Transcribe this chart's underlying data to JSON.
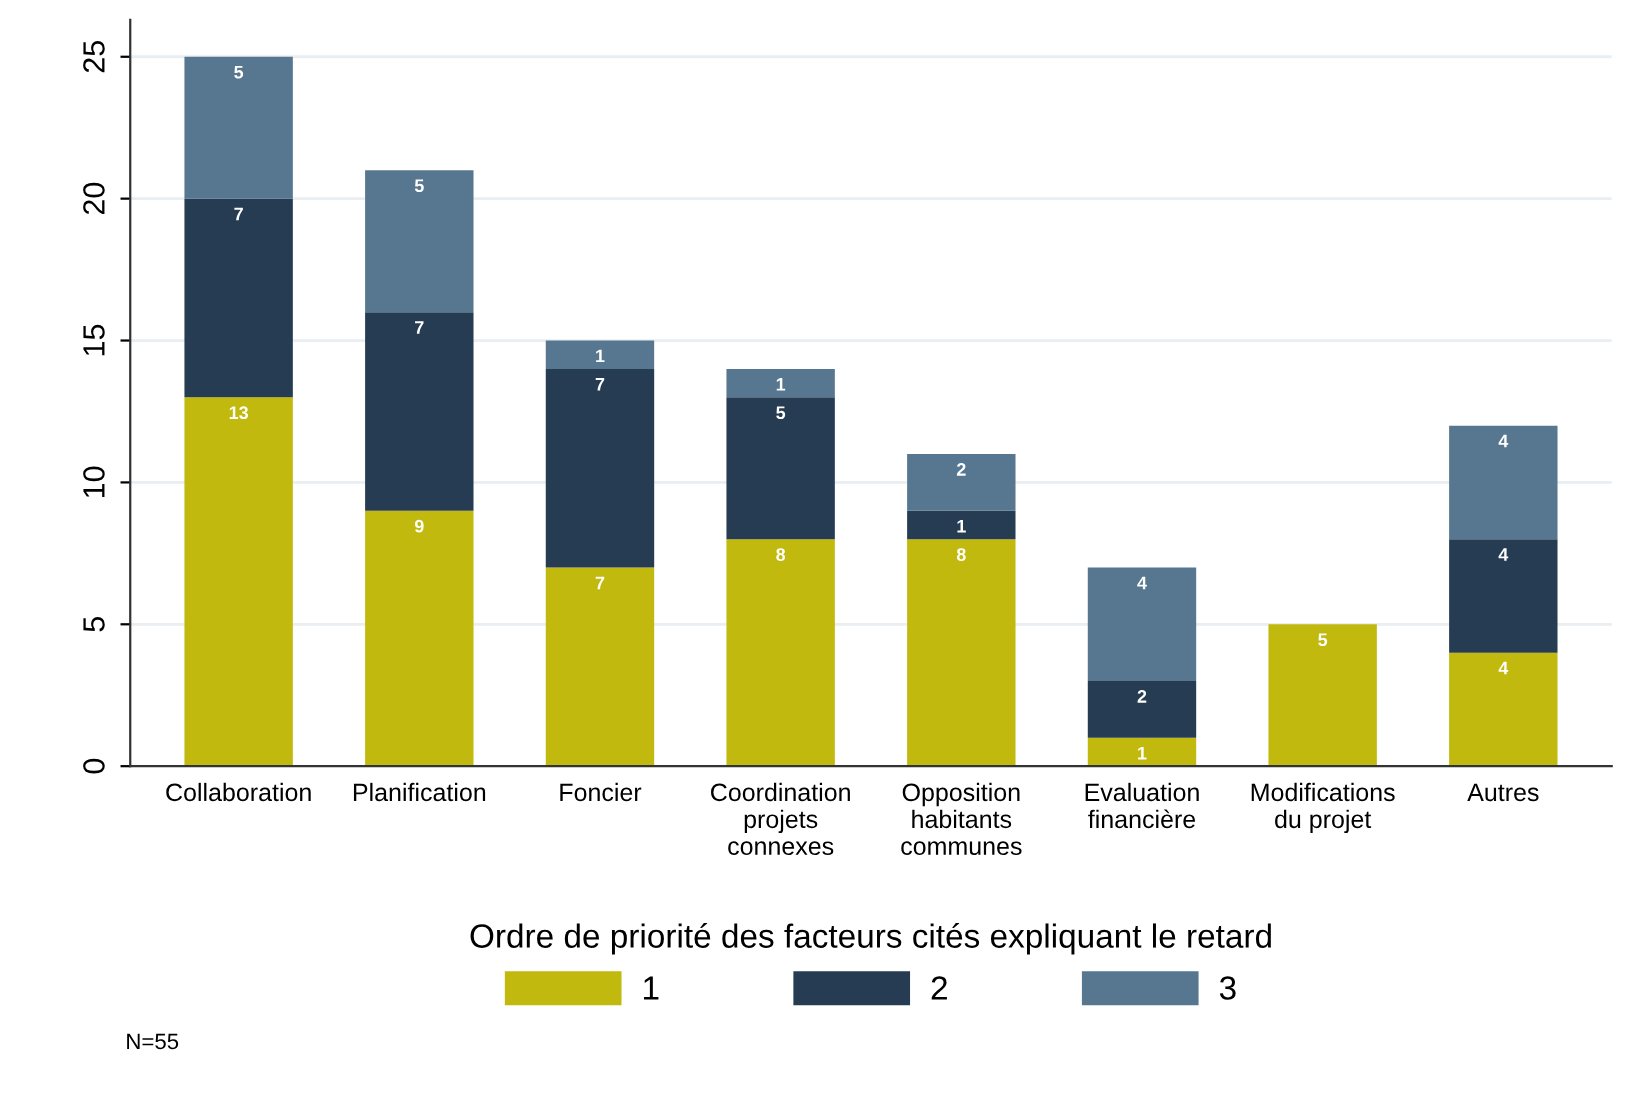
{
  "chart_data": {
    "type": "bar",
    "stacked": true,
    "categories": [
      "Collaboration",
      "Planification",
      "Foncier",
      "Coordination\nprojets\nconnexes",
      "Opposition\nhabitants\ncommunes",
      "Evaluation\nfinancière",
      "Modifications\ndu projet",
      "Autres"
    ],
    "series": [
      {
        "name": "1",
        "color": "#c1b90d",
        "values": [
          13,
          9,
          7,
          8,
          8,
          1,
          5,
          4
        ]
      },
      {
        "name": "2",
        "color": "#263c52",
        "values": [
          7,
          7,
          7,
          5,
          1,
          2,
          null,
          4
        ]
      },
      {
        "name": "3",
        "color": "#56778f",
        "values": [
          5,
          5,
          1,
          1,
          2,
          4,
          null,
          4
        ]
      }
    ],
    "ylim": [
      0,
      26.3
    ],
    "yticks": [
      0,
      5,
      10,
      15,
      20,
      25
    ],
    "grid": "y",
    "data_labels": true,
    "legend": "bottom",
    "legend_title": "Ordre de priorité des facteurs cités expliquant le retard",
    "annotations": [
      "N=55"
    ]
  }
}
